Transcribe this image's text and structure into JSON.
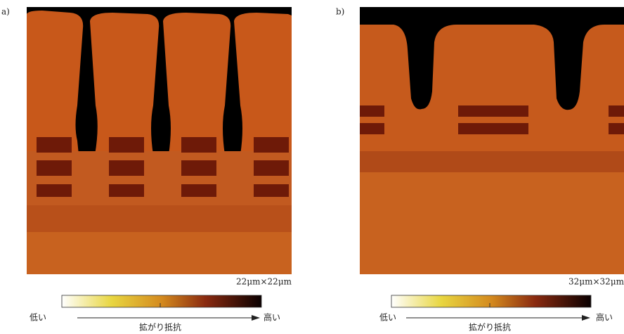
{
  "panels": [
    {
      "label": "a)",
      "scale": "22μm×22μm",
      "colorbar": {
        "low": "低い",
        "high": "高い",
        "axis_label": "拡がり抵抗"
      }
    },
    {
      "label": "b)",
      "scale": "32μm×32μm",
      "colorbar": {
        "low": "低い",
        "high": "高い",
        "axis_label": "拡がり抵抗"
      }
    }
  ]
}
